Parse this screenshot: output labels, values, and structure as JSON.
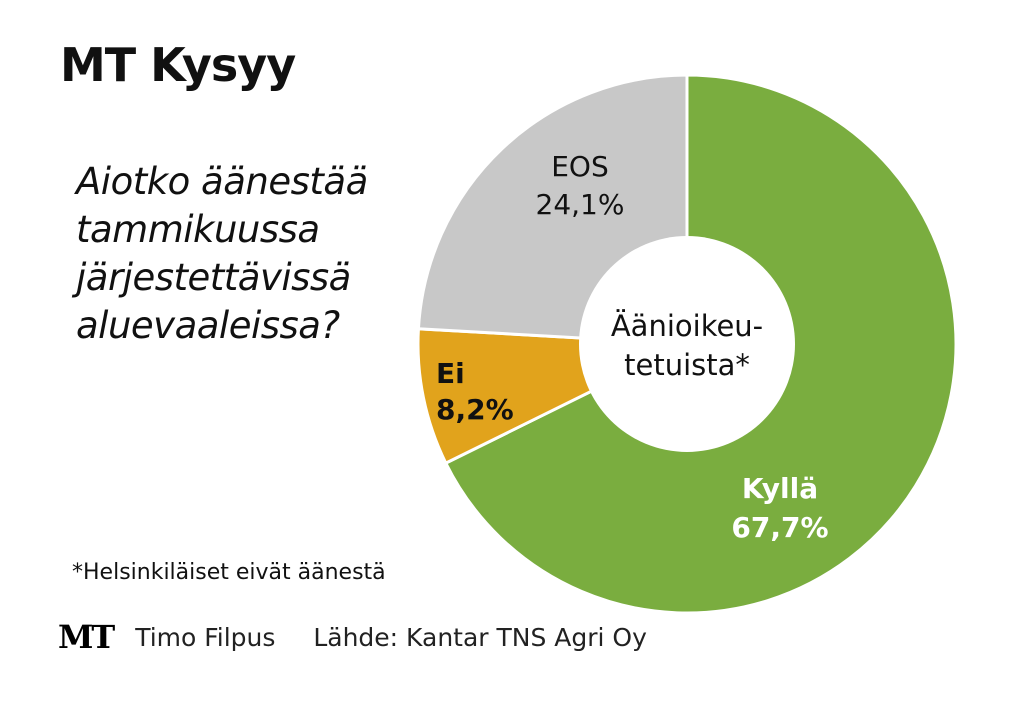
{
  "header": {
    "title": "MT Kysyy"
  },
  "question": {
    "lines": [
      "Aiotko äänestää",
      "tammikuussa",
      "järjestettävissä",
      "aluevaaleissa?"
    ]
  },
  "footnote": "*Helsinkiläiset eivät äänestä",
  "credits": {
    "logo": "MT",
    "author": "Timo Filpus",
    "source": "Lähde: Kantar TNS Agri Oy"
  },
  "colors": {
    "kylla": "#7aad3f",
    "ei": "#e1a31c",
    "eos": "#c8c8c8",
    "stroke": "#ffffff"
  },
  "chart_data": {
    "type": "pie",
    "donut": true,
    "center_label_lines": [
      "Äänioikeu-",
      "tetuista*"
    ],
    "slices": [
      {
        "name": "Kyllä",
        "value": 67.7,
        "label": "67,7%",
        "color": "#7aad3f"
      },
      {
        "name": "Ei",
        "value": 8.2,
        "label": "8,2%",
        "color": "#e1a31c"
      },
      {
        "name": "EOS",
        "value": 24.1,
        "label": "24,1%",
        "color": "#c8c8c8"
      }
    ]
  }
}
